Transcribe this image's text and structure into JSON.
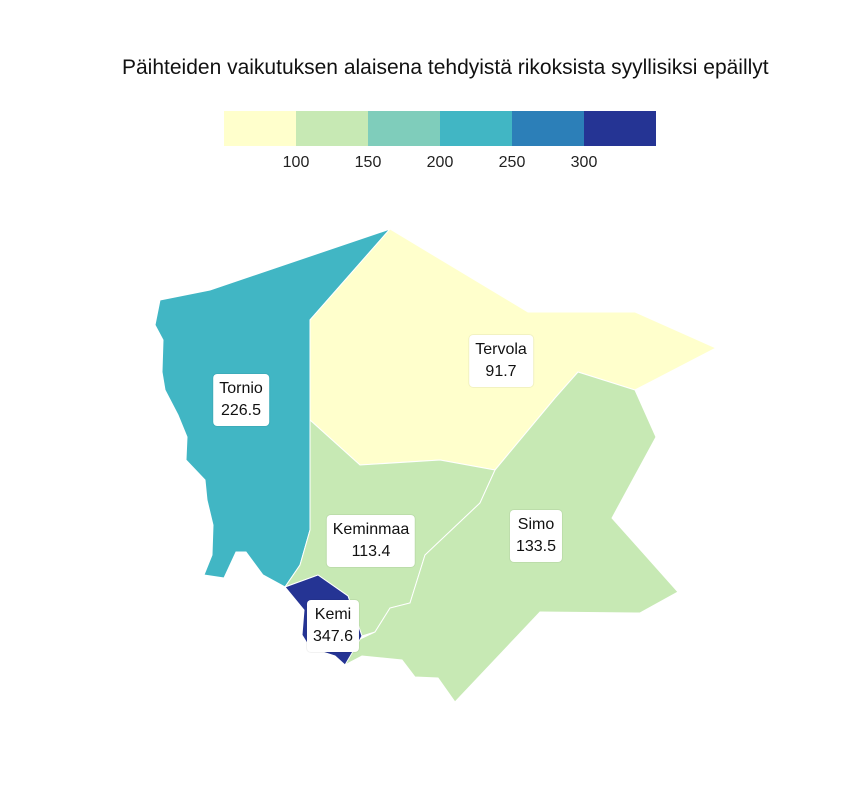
{
  "title": "Päihteiden vaikutuksen alaisena tehdyistä rikoksista syyllisiksi epäillyt",
  "legend": {
    "bins": [
      {
        "color": "#ffffcc"
      },
      {
        "color": "#c7e9b4"
      },
      {
        "color": "#7fcdbb"
      },
      {
        "color": "#41b6c4"
      },
      {
        "color": "#2c7fb8"
      },
      {
        "color": "#253494"
      }
    ],
    "ticks": [
      "100",
      "150",
      "200",
      "250",
      "300"
    ]
  },
  "regions": [
    {
      "name": "Tornio",
      "value": "226.5",
      "color": "#41b6c4"
    },
    {
      "name": "Tervola",
      "value": "91.7",
      "color": "#ffffcc"
    },
    {
      "name": "Keminmaa",
      "value": "113.4",
      "color": "#c7e9b4"
    },
    {
      "name": "Simo",
      "value": "133.5",
      "color": "#c7e9b4"
    },
    {
      "name": "Kemi",
      "value": "347.6",
      "color": "#253494"
    }
  ]
}
